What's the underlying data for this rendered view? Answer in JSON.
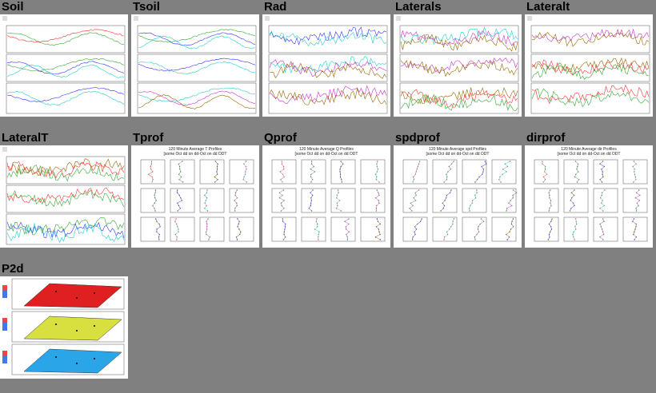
{
  "thumbnails": [
    {
      "id": "soil",
      "title": "Soil",
      "kind": "timeseries"
    },
    {
      "id": "tsoil",
      "title": "Tsoil",
      "kind": "timeseries"
    },
    {
      "id": "rad",
      "title": "Rad",
      "kind": "timeseries"
    },
    {
      "id": "laterals",
      "title": "Laterals",
      "kind": "timeseries"
    },
    {
      "id": "lateralt",
      "title": "Lateralt",
      "kind": "timeseries"
    },
    {
      "id": "lateralT",
      "title": "LateralT",
      "kind": "timeseries"
    },
    {
      "id": "tprof",
      "title": "Tprof",
      "kind": "profiles",
      "heading": "120 Minute Average T Profiles",
      "subheading": "[some Oct dd on dd-Oct on dd ODT"
    },
    {
      "id": "qprof",
      "title": "Qprof",
      "kind": "profiles",
      "heading": "120 Minute Average Q Profiles",
      "subheading": "[some Oct dd on dd-Oct on dd ODT"
    },
    {
      "id": "spdprof",
      "title": "spdprof",
      "kind": "profiles",
      "heading": "120 Minute Average spd Profiles",
      "subheading": "[some Oct dd on dd-Oct on dd ODT"
    },
    {
      "id": "dirprof",
      "title": "dirprof",
      "kind": "profiles",
      "heading": "120 Minute Average dir Profiles",
      "subheading": "[some Oct dd on dd-Oct on dd ODT"
    },
    {
      "id": "p2d",
      "title": "P2d",
      "kind": "contour"
    }
  ],
  "colors": {
    "background": "#808080",
    "series": [
      "#ff3333",
      "#33aa33",
      "#3333ff",
      "#22cccc",
      "#cc33cc",
      "#996600"
    ]
  }
}
